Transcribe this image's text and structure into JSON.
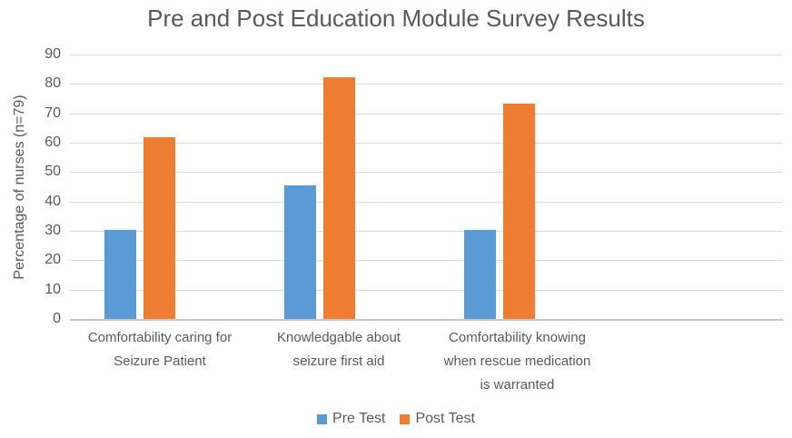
{
  "chart_data": {
    "type": "bar",
    "title": "Pre and Post Education Module Survey Results",
    "ylabel": "Percentage of nurses (n=79)",
    "xlabel": "",
    "categories": [
      "Comfortability caring for\nSeizure Patient",
      "Knowledgable about\nseizure first aid",
      "Comfortability knowing\nwhen rescue medication\nis warranted"
    ],
    "series": [
      {
        "name": "Pre Test",
        "color": "#5B9BD5",
        "values": [
          30.4,
          45.6,
          30.4
        ]
      },
      {
        "name": "Post Test",
        "color": "#ED7D31",
        "values": [
          62.0,
          82.3,
          73.4
        ]
      }
    ],
    "ylim": [
      0,
      90
    ],
    "yticks": [
      0,
      10,
      20,
      30,
      40,
      50,
      60,
      70,
      80,
      90
    ],
    "grid": true,
    "legend_position": "bottom"
  },
  "style": {
    "text_color": "#595959",
    "gridline_color": "#D9D9D9",
    "axis_line_color": "#C8C8C8",
    "background": "#FFFFFF"
  }
}
